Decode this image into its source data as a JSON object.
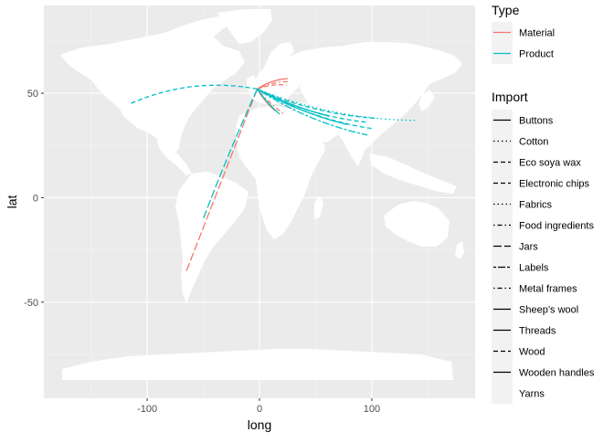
{
  "chart_data": {
    "type": "line",
    "xlabel": "long",
    "ylabel": "lat",
    "xlim": [
      -192,
      192
    ],
    "ylim": [
      -96,
      92
    ],
    "x_ticks": [
      -100,
      0,
      100
    ],
    "x_tick_labels": [
      "-100",
      "0",
      "100"
    ],
    "y_ticks": [
      -50,
      0,
      50
    ],
    "y_tick_labels": [
      "-50",
      "0",
      "50"
    ],
    "grid": true,
    "background": "#ebebeb",
    "land_color": "#ffffff",
    "legend_position": "right",
    "legend_type": {
      "title": "Type",
      "entries": [
        {
          "label": "Material",
          "color": "#f8766d"
        },
        {
          "label": "Product",
          "color": "#00bfc4"
        }
      ]
    },
    "legend_import": {
      "title": "Import",
      "entries": [
        {
          "label": "Buttons",
          "dash": "solid"
        },
        {
          "label": "Cotton",
          "dash": "dotted"
        },
        {
          "label": "Eco soya wax",
          "dash": "dashed"
        },
        {
          "label": "Electronic chips",
          "dash": "dashed"
        },
        {
          "label": "Fabrics",
          "dash": "dotted"
        },
        {
          "label": "Food ingredients",
          "dash": "dotdash"
        },
        {
          "label": "Jars",
          "dash": "longdash"
        },
        {
          "label": "Labels",
          "dash": "twodash"
        },
        {
          "label": "Metal frames",
          "dash": "dotdash"
        },
        {
          "label": "Sheep’s wool",
          "dash": "solid"
        },
        {
          "label": "Threads",
          "dash": "solid"
        },
        {
          "label": "Wood",
          "dash": "dashed"
        },
        {
          "label": "Wooden handles",
          "dash": "solid"
        },
        {
          "label": "Yarns",
          "dash": "none"
        }
      ]
    },
    "series": [
      {
        "type": "Material",
        "dash": "longdash",
        "from": [
          -65,
          -35
        ],
        "to": [
          -2,
          52
        ],
        "bulge": 0
      },
      {
        "type": "Material",
        "dash": "solid",
        "from": [
          -2,
          52
        ],
        "to": [
          25,
          57
        ],
        "bulge": -2
      },
      {
        "type": "Material",
        "dash": "dotdash",
        "from": [
          -2,
          52
        ],
        "to": [
          27,
          55.5
        ],
        "bulge": -2
      },
      {
        "type": "Material",
        "dash": "dashed",
        "from": [
          -2,
          52
        ],
        "to": [
          24,
          54
        ],
        "bulge": -1.5
      },
      {
        "type": "Material",
        "dash": "dotdash",
        "from": [
          -2,
          52
        ],
        "to": [
          22,
          40
        ],
        "bulge": 1
      },
      {
        "type": "Material",
        "dash": "solid",
        "from": [
          -2,
          52
        ],
        "to": [
          14,
          41.5
        ],
        "bulge": 1
      },
      {
        "type": "Product",
        "dash": "dashed",
        "from": [
          -2,
          52
        ],
        "to": [
          -115,
          45
        ],
        "bulge": 9
      },
      {
        "type": "Product",
        "dash": "longdash",
        "from": [
          -2,
          52
        ],
        "to": [
          -50,
          -10
        ],
        "bulge": 1
      },
      {
        "type": "Product",
        "dash": "solid",
        "from": [
          -2,
          52
        ],
        "to": [
          18,
          40
        ],
        "bulge": 1
      },
      {
        "type": "Product",
        "dash": "solid",
        "from": [
          -2,
          52
        ],
        "to": [
          62,
          39
        ],
        "bulge": 2
      },
      {
        "type": "Product",
        "dash": "solid",
        "from": [
          -2,
          52
        ],
        "to": [
          78,
          35
        ],
        "bulge": 3
      },
      {
        "type": "Product",
        "dash": "dashed",
        "from": [
          -2,
          52
        ],
        "to": [
          97,
          36
        ],
        "bulge": 5
      },
      {
        "type": "Product",
        "dash": "dashed",
        "from": [
          -2,
          52
        ],
        "to": [
          101,
          33
        ],
        "bulge": 5
      },
      {
        "type": "Product",
        "dash": "twodash",
        "from": [
          -2,
          52
        ],
        "to": [
          96,
          30
        ],
        "bulge": 5
      },
      {
        "type": "Product",
        "dash": "dashed",
        "from": [
          -2,
          52
        ],
        "to": [
          104,
          38
        ],
        "bulge": 5
      },
      {
        "type": "Product",
        "dash": "dotted",
        "from": [
          -2,
          52
        ],
        "to": [
          140,
          37
        ],
        "bulge": 7
      }
    ]
  }
}
